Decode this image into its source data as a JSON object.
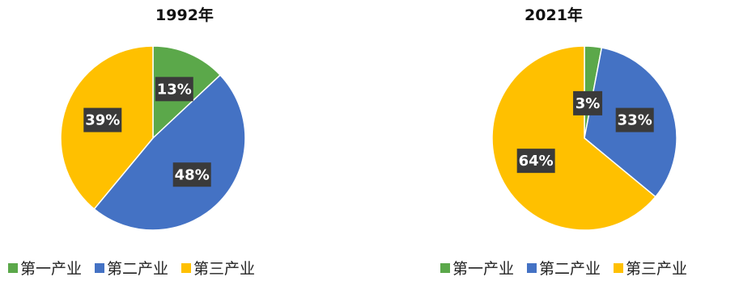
{
  "chart_data": [
    {
      "type": "pie",
      "title": "1992年",
      "slices": [
        {
          "label": "第一产业",
          "value": 13,
          "display": "13%",
          "color": "#5BA84A"
        },
        {
          "label": "第二产业",
          "value": 48,
          "display": "48%",
          "color": "#4472C4"
        },
        {
          "label": "第三产业",
          "value": 39,
          "display": "39%",
          "color": "#FFC000"
        }
      ],
      "legend": [
        "第一产业",
        "第二产业",
        "第三产业"
      ],
      "legend_position": "bottom"
    },
    {
      "type": "pie",
      "title": "2021年",
      "slices": [
        {
          "label": "第一产业",
          "value": 3,
          "display": "3%",
          "color": "#5BA84A"
        },
        {
          "label": "第二产业",
          "value": 33,
          "display": "33%",
          "color": "#4472C4"
        },
        {
          "label": "第三产业",
          "value": 64,
          "display": "64%",
          "color": "#FFC000"
        }
      ],
      "legend": [
        "第一产业",
        "第二产业",
        "第三产业"
      ],
      "legend_position": "bottom"
    }
  ]
}
